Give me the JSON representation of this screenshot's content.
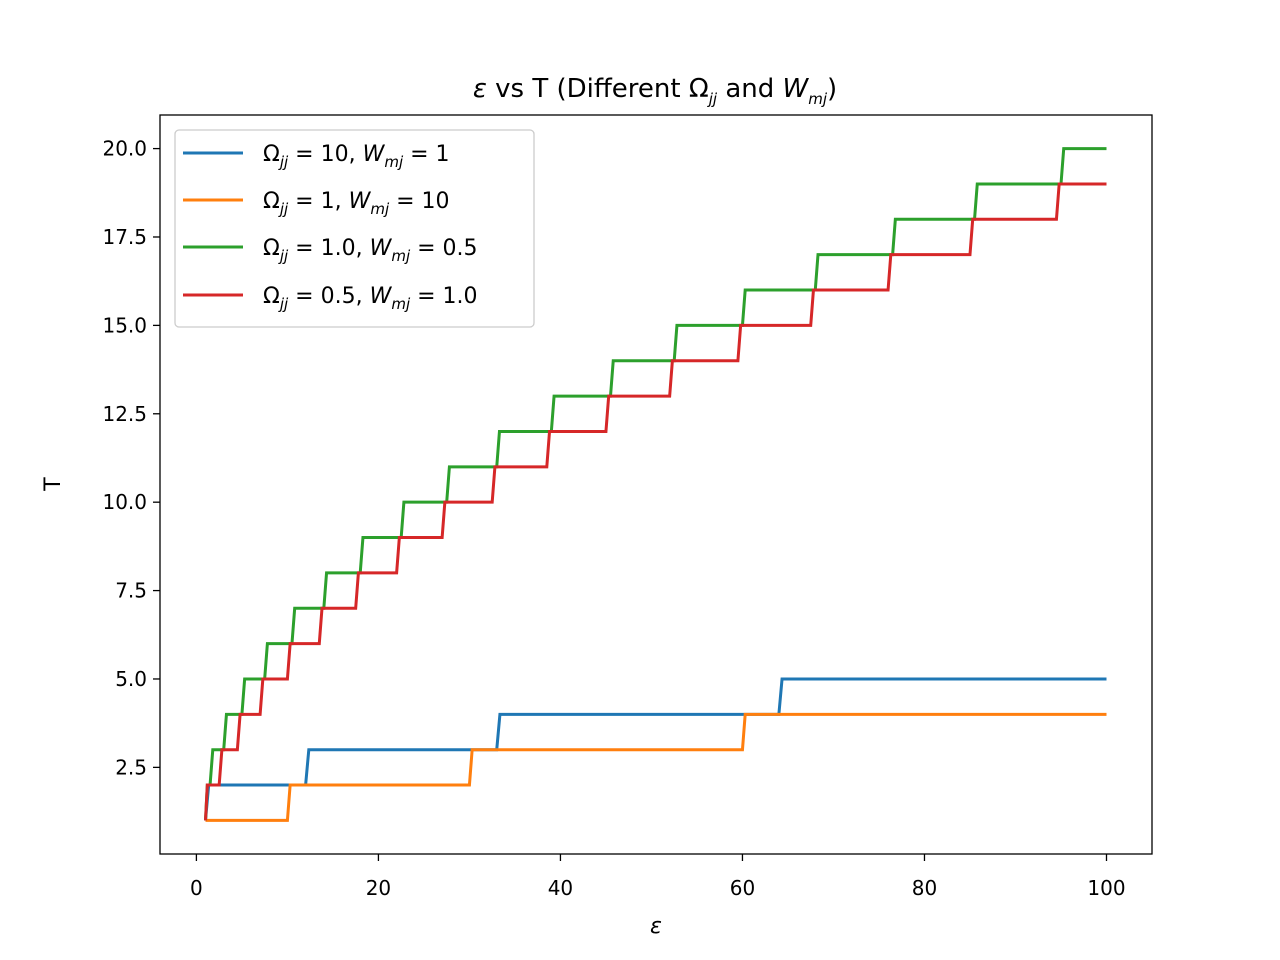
{
  "chart_data": {
    "type": "line",
    "step": true,
    "title": {
      "prefix_italic": "ε",
      "mid1": " vs T (Different Ω",
      "sub1": "jj",
      "mid2": " and ",
      "w_italic": "W",
      "sub2": "mj",
      "suffix": ")"
    },
    "xlabel": "ε",
    "ylabel": "T",
    "xlim": [
      -4,
      105
    ],
    "ylim": [
      0.05,
      20.95
    ],
    "xticks": [
      0,
      20,
      40,
      60,
      80,
      100
    ],
    "xtick_labels": [
      "0",
      "20",
      "40",
      "60",
      "80",
      "100"
    ],
    "yticks": [
      2.5,
      5.0,
      7.5,
      10.0,
      12.5,
      15.0,
      17.5,
      20.0
    ],
    "ytick_labels": [
      "2.5",
      "5.0",
      "7.5",
      "10.0",
      "12.5",
      "15.0",
      "17.5",
      "20.0"
    ],
    "legend_position": "upper-left",
    "series": [
      {
        "name": "Ωjj = 10, Wmj = 1",
        "label": {
          "omega": "Ω",
          "omega_sub": "jj",
          "omega_val": " = 10, ",
          "w": "W",
          "w_sub": "mj",
          "w_val": " = 1"
        },
        "color": "#1f77b4",
        "x": [
          1,
          1.35,
          12,
          12.35,
          33,
          33.35,
          64,
          64.35,
          100
        ],
        "y": [
          1,
          2,
          2,
          3,
          3,
          4,
          4,
          5,
          5
        ]
      },
      {
        "name": "Ωjj = 1, Wmj = 10",
        "label": {
          "omega": "Ω",
          "omega_sub": "jj",
          "omega_val": " = 1, ",
          "w": "W",
          "w_sub": "mj",
          "w_val": " = 10"
        },
        "color": "#ff7f0e",
        "x": [
          1,
          10,
          10.3,
          30,
          30.3,
          60,
          60.3,
          100
        ],
        "y": [
          1,
          1,
          2,
          2,
          3,
          3,
          4,
          4
        ]
      },
      {
        "name": "Ωjj = 1.0, Wmj = 0.5",
        "label": {
          "omega": "Ω",
          "omega_sub": "jj",
          "omega_val": " = 1.0, ",
          "w": "W",
          "w_sub": "mj",
          "w_val": " = 0.5"
        },
        "color": "#2ca02c",
        "x": [
          1,
          1.2,
          1.5,
          1.8,
          3,
          3.3,
          5,
          5.3,
          7.5,
          7.8,
          10.5,
          10.8,
          14,
          14.3,
          18,
          18.3,
          22.5,
          22.8,
          27.5,
          27.8,
          33,
          33.3,
          39,
          39.3,
          45.5,
          45.8,
          52.5,
          52.8,
          60,
          60.3,
          68,
          68.3,
          76.5,
          76.8,
          85.5,
          85.8,
          95,
          95.3,
          100
        ],
        "y": [
          1,
          2,
          2,
          3,
          3,
          4,
          4,
          5,
          5,
          6,
          6,
          7,
          7,
          8,
          8,
          9,
          9,
          10,
          10,
          11,
          11,
          12,
          12,
          13,
          13,
          14,
          14,
          15,
          15,
          16,
          16,
          17,
          17,
          18,
          18,
          19,
          19,
          20,
          20
        ]
      },
      {
        "name": "Ωjj = 0.5, Wmj = 1.0",
        "label": {
          "omega": "Ω",
          "omega_sub": "jj",
          "omega_val": " = 0.5, ",
          "w": "W",
          "w_sub": "mj",
          "w_val": " = 1.0"
        },
        "color": "#d62728",
        "x": [
          1,
          1.2,
          2.5,
          2.8,
          4.5,
          4.8,
          7,
          7.3,
          10,
          10.3,
          13.5,
          13.8,
          17.5,
          17.8,
          22,
          22.3,
          27,
          27.3,
          32.5,
          32.8,
          38.5,
          38.8,
          45,
          45.3,
          52,
          52.3,
          59.5,
          59.8,
          67.5,
          67.8,
          76,
          76.3,
          85,
          85.3,
          94.5,
          94.8,
          100
        ],
        "y": [
          1,
          2,
          2,
          3,
          3,
          4,
          4,
          5,
          5,
          6,
          6,
          7,
          7,
          8,
          8,
          9,
          9,
          10,
          10,
          11,
          11,
          12,
          12,
          13,
          13,
          14,
          14,
          15,
          15,
          16,
          16,
          17,
          17,
          18,
          18,
          19,
          19
        ]
      }
    ]
  }
}
